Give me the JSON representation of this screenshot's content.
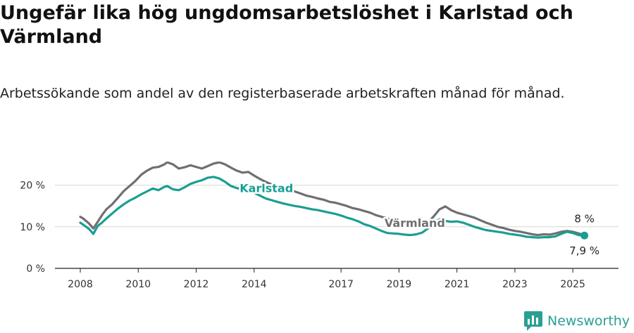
{
  "header": {
    "title": "Ungefär lika hög ungdomsarbetslöshet i Karlstad och Värmland",
    "subtitle": "Arbetssökande som andel av den registerbaserade arbetskraften månad för månad."
  },
  "brand": {
    "name": "Newsworthy",
    "icon": "newsworthy-logo-icon",
    "color": "#2aa092"
  },
  "chart_data": {
    "type": "line",
    "x_ticks": [
      "2008",
      "2010",
      "2012",
      "2014",
      "2017",
      "2019",
      "2021",
      "2023",
      "2025"
    ],
    "y_ticks": [
      "0 %",
      "10 %",
      "20 %"
    ],
    "ylim": [
      0,
      25
    ],
    "grid": true,
    "legend": "inline labels",
    "series": [
      {
        "name": "Värmland",
        "color": "#6f6f72",
        "end_label": "8 %",
        "points": [
          [
            2008.0,
            12.4
          ],
          [
            2008.1,
            12.0
          ],
          [
            2008.3,
            10.8
          ],
          [
            2008.45,
            9.6
          ],
          [
            2008.6,
            11.2
          ],
          [
            2008.75,
            12.8
          ],
          [
            2008.9,
            14.2
          ],
          [
            2009.1,
            15.4
          ],
          [
            2009.3,
            17.0
          ],
          [
            2009.5,
            18.6
          ],
          [
            2009.7,
            19.8
          ],
          [
            2009.9,
            21.0
          ],
          [
            2010.1,
            22.5
          ],
          [
            2010.3,
            23.5
          ],
          [
            2010.5,
            24.2
          ],
          [
            2010.7,
            24.4
          ],
          [
            2010.9,
            25.0
          ],
          [
            2011.0,
            25.5
          ],
          [
            2011.2,
            25.0
          ],
          [
            2011.4,
            24.0
          ],
          [
            2011.6,
            24.3
          ],
          [
            2011.8,
            24.8
          ],
          [
            2012.0,
            24.4
          ],
          [
            2012.2,
            24.0
          ],
          [
            2012.4,
            24.6
          ],
          [
            2012.6,
            25.2
          ],
          [
            2012.8,
            25.5
          ],
          [
            2013.0,
            25.0
          ],
          [
            2013.2,
            24.2
          ],
          [
            2013.4,
            23.5
          ],
          [
            2013.6,
            23.0
          ],
          [
            2013.8,
            23.2
          ],
          [
            2014.0,
            22.3
          ],
          [
            2014.2,
            21.5
          ],
          [
            2014.4,
            20.8
          ],
          [
            2014.6,
            20.2
          ],
          [
            2014.8,
            19.8
          ],
          [
            2015.0,
            19.5
          ],
          [
            2015.2,
            19.0
          ],
          [
            2015.4,
            18.5
          ],
          [
            2015.6,
            18.0
          ],
          [
            2015.8,
            17.5
          ],
          [
            2016.0,
            17.2
          ],
          [
            2016.2,
            16.8
          ],
          [
            2016.4,
            16.5
          ],
          [
            2016.6,
            16.0
          ],
          [
            2016.8,
            15.8
          ],
          [
            2017.0,
            15.4
          ],
          [
            2017.2,
            15.0
          ],
          [
            2017.4,
            14.5
          ],
          [
            2017.6,
            14.2
          ],
          [
            2017.8,
            13.8
          ],
          [
            2018.0,
            13.4
          ],
          [
            2018.2,
            12.8
          ],
          [
            2018.4,
            12.4
          ],
          [
            2018.6,
            12.0
          ],
          [
            2018.8,
            11.6
          ],
          [
            2019.0,
            11.2
          ],
          [
            2019.2,
            10.8
          ],
          [
            2019.4,
            10.4
          ],
          [
            2019.6,
            10.2
          ],
          [
            2019.8,
            10.4
          ],
          [
            2020.0,
            11.0
          ],
          [
            2020.2,
            12.5
          ],
          [
            2020.4,
            14.2
          ],
          [
            2020.6,
            14.9
          ],
          [
            2020.8,
            14.0
          ],
          [
            2021.0,
            13.4
          ],
          [
            2021.2,
            13.0
          ],
          [
            2021.4,
            12.6
          ],
          [
            2021.6,
            12.2
          ],
          [
            2021.8,
            11.6
          ],
          [
            2022.0,
            11.0
          ],
          [
            2022.2,
            10.5
          ],
          [
            2022.4,
            10.0
          ],
          [
            2022.6,
            9.7
          ],
          [
            2022.8,
            9.3
          ],
          [
            2023.0,
            9.0
          ],
          [
            2023.2,
            8.8
          ],
          [
            2023.4,
            8.5
          ],
          [
            2023.6,
            8.2
          ],
          [
            2023.8,
            8.0
          ],
          [
            2024.0,
            8.2
          ],
          [
            2024.2,
            8.1
          ],
          [
            2024.4,
            8.4
          ],
          [
            2024.6,
            8.8
          ],
          [
            2024.8,
            9.0
          ],
          [
            2025.0,
            8.8
          ],
          [
            2025.2,
            8.4
          ],
          [
            2025.4,
            8.0
          ]
        ]
      },
      {
        "name": "Karlstad",
        "color": "#1a9e93",
        "end_label": "7,9 %",
        "points": [
          [
            2008.0,
            11.0
          ],
          [
            2008.1,
            10.5
          ],
          [
            2008.3,
            9.5
          ],
          [
            2008.45,
            8.3
          ],
          [
            2008.6,
            10.2
          ],
          [
            2008.75,
            11.0
          ],
          [
            2008.9,
            12.0
          ],
          [
            2009.1,
            13.2
          ],
          [
            2009.3,
            14.4
          ],
          [
            2009.5,
            15.4
          ],
          [
            2009.7,
            16.3
          ],
          [
            2009.9,
            17.0
          ],
          [
            2010.1,
            17.8
          ],
          [
            2010.3,
            18.5
          ],
          [
            2010.5,
            19.2
          ],
          [
            2010.7,
            18.8
          ],
          [
            2010.9,
            19.6
          ],
          [
            2011.0,
            19.8
          ],
          [
            2011.2,
            19.0
          ],
          [
            2011.4,
            18.8
          ],
          [
            2011.6,
            19.5
          ],
          [
            2011.8,
            20.3
          ],
          [
            2012.0,
            20.8
          ],
          [
            2012.2,
            21.2
          ],
          [
            2012.4,
            21.8
          ],
          [
            2012.6,
            22.0
          ],
          [
            2012.8,
            21.6
          ],
          [
            2013.0,
            20.8
          ],
          [
            2013.2,
            19.8
          ],
          [
            2013.4,
            19.3
          ],
          [
            2013.6,
            19.0
          ],
          [
            2013.8,
            18.6
          ],
          [
            2014.0,
            18.2
          ],
          [
            2014.2,
            17.5
          ],
          [
            2014.4,
            16.8
          ],
          [
            2014.6,
            16.4
          ],
          [
            2014.8,
            16.0
          ],
          [
            2015.0,
            15.6
          ],
          [
            2015.2,
            15.3
          ],
          [
            2015.4,
            15.0
          ],
          [
            2015.6,
            14.8
          ],
          [
            2015.8,
            14.5
          ],
          [
            2016.0,
            14.2
          ],
          [
            2016.2,
            14.0
          ],
          [
            2016.4,
            13.7
          ],
          [
            2016.6,
            13.4
          ],
          [
            2016.8,
            13.1
          ],
          [
            2017.0,
            12.7
          ],
          [
            2017.2,
            12.2
          ],
          [
            2017.4,
            11.8
          ],
          [
            2017.6,
            11.3
          ],
          [
            2017.8,
            10.6
          ],
          [
            2018.0,
            10.2
          ],
          [
            2018.2,
            9.6
          ],
          [
            2018.4,
            9.0
          ],
          [
            2018.6,
            8.5
          ],
          [
            2018.8,
            8.4
          ],
          [
            2019.0,
            8.3
          ],
          [
            2019.2,
            8.1
          ],
          [
            2019.4,
            8.0
          ],
          [
            2019.6,
            8.2
          ],
          [
            2019.8,
            8.6
          ],
          [
            2020.0,
            9.6
          ],
          [
            2020.2,
            11.0
          ],
          [
            2020.4,
            11.8
          ],
          [
            2020.6,
            11.4
          ],
          [
            2020.8,
            11.2
          ],
          [
            2021.0,
            11.3
          ],
          [
            2021.2,
            11.0
          ],
          [
            2021.4,
            10.5
          ],
          [
            2021.6,
            10.0
          ],
          [
            2021.8,
            9.6
          ],
          [
            2022.0,
            9.2
          ],
          [
            2022.2,
            9.0
          ],
          [
            2022.4,
            8.8
          ],
          [
            2022.6,
            8.6
          ],
          [
            2022.8,
            8.3
          ],
          [
            2023.0,
            8.1
          ],
          [
            2023.2,
            7.9
          ],
          [
            2023.4,
            7.6
          ],
          [
            2023.6,
            7.5
          ],
          [
            2023.8,
            7.4
          ],
          [
            2024.0,
            7.5
          ],
          [
            2024.2,
            7.5
          ],
          [
            2024.4,
            7.7
          ],
          [
            2024.6,
            8.3
          ],
          [
            2024.8,
            8.8
          ],
          [
            2025.0,
            8.5
          ],
          [
            2025.2,
            8.0
          ],
          [
            2025.4,
            7.9
          ]
        ]
      }
    ]
  }
}
